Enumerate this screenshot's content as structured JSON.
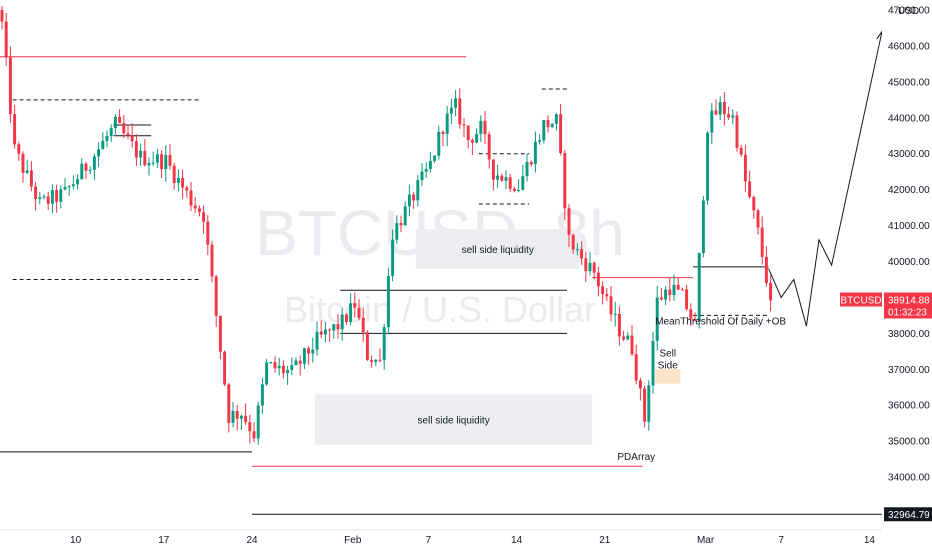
{
  "chart_data": {
    "type": "candlestick",
    "symbol": "BTCUSD",
    "watermark": {
      "symbol_line": "BTCUSD, 8h",
      "name_line": "Bitcoin / U.S. Dollar"
    },
    "currency": "USD",
    "last_price_label": "38914.88",
    "countdown": "01:32:23",
    "symbol_tag": "BTCUSD",
    "y_range": [
      33000,
      47000
    ],
    "y_ticks": [
      34000,
      35000,
      36000,
      37000,
      38000,
      39000,
      40000,
      41000,
      42000,
      43000,
      44000,
      45000,
      46000,
      47000
    ],
    "y_tick_labels": [
      "34000.00",
      "35000.00",
      "36000.00",
      "37000.00",
      "38000.00",
      "39000.00",
      "40000.00",
      "41000.00",
      "42000.00",
      "43000.00",
      "44000.00",
      "45000.00",
      "46000.00",
      "47000.00"
    ],
    "x_range": [
      "2022-01-04",
      "2022-03-15"
    ],
    "x_ticks": [
      {
        "date": "2022-01-10",
        "label": "10"
      },
      {
        "date": "2022-01-17",
        "label": "17"
      },
      {
        "date": "2022-01-24",
        "label": "24"
      },
      {
        "date": "2022-02-01",
        "label": "Feb"
      },
      {
        "date": "2022-02-07",
        "label": "7"
      },
      {
        "date": "2022-02-14",
        "label": "14"
      },
      {
        "date": "2022-02-21",
        "label": "21"
      },
      {
        "date": "2022-03-01",
        "label": "Mar"
      },
      {
        "date": "2022-03-07",
        "label": "7"
      },
      {
        "date": "2022-03-14",
        "label": "14"
      }
    ],
    "price_tag": {
      "value": 32964.79,
      "label": "32964.79"
    },
    "anchors": [
      {
        "date": "2022-01-04",
        "price": 46600
      },
      {
        "date": "2022-01-05",
        "price": 43100
      },
      {
        "date": "2022-01-07",
        "price": 41600
      },
      {
        "date": "2022-01-09",
        "price": 41900
      },
      {
        "date": "2022-01-11",
        "price": 42800
      },
      {
        "date": "2022-01-13",
        "price": 43800
      },
      {
        "date": "2022-01-15",
        "price": 42900
      },
      {
        "date": "2022-01-17",
        "price": 42800
      },
      {
        "date": "2022-01-19",
        "price": 41700
      },
      {
        "date": "2022-01-20",
        "price": 41300
      },
      {
        "date": "2022-01-21",
        "price": 38500
      },
      {
        "date": "2022-01-22",
        "price": 35700
      },
      {
        "date": "2022-01-23",
        "price": 35800
      },
      {
        "date": "2022-01-24",
        "price": 35200
      },
      {
        "date": "2022-01-25",
        "price": 37100
      },
      {
        "date": "2022-01-26",
        "price": 37000
      },
      {
        "date": "2022-01-27",
        "price": 36900
      },
      {
        "date": "2022-01-29",
        "price": 37800
      },
      {
        "date": "2022-01-31",
        "price": 38300
      },
      {
        "date": "2022-02-01",
        "price": 38800
      },
      {
        "date": "2022-02-02",
        "price": 37400
      },
      {
        "date": "2022-02-03",
        "price": 37200
      },
      {
        "date": "2022-02-04",
        "price": 40800
      },
      {
        "date": "2022-02-05",
        "price": 41400
      },
      {
        "date": "2022-02-07",
        "price": 42700
      },
      {
        "date": "2022-02-08",
        "price": 43800
      },
      {
        "date": "2022-02-09",
        "price": 44300
      },
      {
        "date": "2022-02-10",
        "price": 43400
      },
      {
        "date": "2022-02-11",
        "price": 43700
      },
      {
        "date": "2022-02-12",
        "price": 42500
      },
      {
        "date": "2022-02-14",
        "price": 42100
      },
      {
        "date": "2022-02-16",
        "price": 43800
      },
      {
        "date": "2022-02-17",
        "price": 43900
      },
      {
        "date": "2022-02-18",
        "price": 40600
      },
      {
        "date": "2022-02-19",
        "price": 40100
      },
      {
        "date": "2022-02-20",
        "price": 39700
      },
      {
        "date": "2022-02-21",
        "price": 38800
      },
      {
        "date": "2022-02-22",
        "price": 38100
      },
      {
        "date": "2022-02-23",
        "price": 37600
      },
      {
        "date": "2022-02-24",
        "price": 35600
      },
      {
        "date": "2022-02-25",
        "price": 38900
      },
      {
        "date": "2022-02-26",
        "price": 39300
      },
      {
        "date": "2022-02-27",
        "price": 39000
      },
      {
        "date": "2022-02-28",
        "price": 38200
      },
      {
        "date": "2022-03-01",
        "price": 43800
      },
      {
        "date": "2022-03-02",
        "price": 44300
      },
      {
        "date": "2022-03-03",
        "price": 44000
      },
      {
        "date": "2022-03-04",
        "price": 42200
      },
      {
        "date": "2022-03-05",
        "price": 40800
      },
      {
        "date": "2022-03-06",
        "price": 38914.88
      }
    ],
    "projection": [
      {
        "date": "2022-03-06",
        "price": 39800
      },
      {
        "date": "2022-03-07",
        "price": 39000
      },
      {
        "date": "2022-03-08",
        "price": 39500
      },
      {
        "date": "2022-03-09",
        "price": 38200
      },
      {
        "date": "2022-03-10",
        "price": 40600
      },
      {
        "date": "2022-03-11",
        "price": 39900
      },
      {
        "date": "2022-03-15",
        "price": 46400
      }
    ],
    "levels": [
      {
        "type": "hline",
        "color": "#f23645",
        "style": "solid",
        "price": 45700,
        "from": "2022-01-04",
        "to": "2022-02-10"
      },
      {
        "type": "hline",
        "color": "#131722",
        "style": "dashed",
        "price": 44500,
        "from": "2022-01-05",
        "to": "2022-01-20"
      },
      {
        "type": "hline",
        "color": "#131722",
        "style": "dashed",
        "price": 39500,
        "from": "2022-01-05",
        "to": "2022-01-20"
      },
      {
        "type": "hline",
        "color": "#131722",
        "style": "solid",
        "price": 43800,
        "from": "2022-01-13",
        "to": "2022-01-16"
      },
      {
        "type": "hline",
        "color": "#131722",
        "style": "solid",
        "price": 43500,
        "from": "2022-01-13",
        "to": "2022-01-16"
      },
      {
        "type": "hline",
        "color": "#131722",
        "style": "solid",
        "price": 34700,
        "from": "2022-01-04",
        "to": "2022-01-24"
      },
      {
        "type": "hline",
        "color": "#f23645",
        "style": "solid",
        "price": 34300,
        "from": "2022-01-24",
        "to": "2022-02-24"
      },
      {
        "type": "hline",
        "color": "#131722",
        "style": "solid",
        "price": 39200,
        "from": "2022-01-31",
        "to": "2022-02-18"
      },
      {
        "type": "hline",
        "color": "#131722",
        "style": "solid",
        "price": 38000,
        "from": "2022-01-31",
        "to": "2022-02-18"
      },
      {
        "type": "hline",
        "color": "#131722",
        "style": "dashed",
        "price": 43000,
        "from": "2022-02-11",
        "to": "2022-02-15"
      },
      {
        "type": "hline",
        "color": "#131722",
        "style": "dashed",
        "price": 41600,
        "from": "2022-02-11",
        "to": "2022-02-15"
      },
      {
        "type": "hline",
        "color": "#131722",
        "style": "dashed",
        "price": 44800,
        "from": "2022-02-16",
        "to": "2022-02-18"
      },
      {
        "type": "hline",
        "color": "#f23645",
        "style": "solid",
        "price": 39550,
        "from": "2022-02-20",
        "to": "2022-02-28"
      },
      {
        "type": "hline",
        "color": "#131722",
        "style": "solid",
        "price": 39850,
        "from": "2022-02-28",
        "to": "2022-03-06"
      },
      {
        "type": "hline",
        "color": "#131722",
        "style": "dashed",
        "price": 38500,
        "from": "2022-02-28",
        "to": "2022-03-06"
      },
      {
        "type": "hline",
        "color": "#131722",
        "style": "solid",
        "price": 32964.79,
        "from": "2022-01-24",
        "to": "2022-03-15"
      }
    ],
    "zones": [
      {
        "text": "sell side liquidity",
        "color": "#eceef1",
        "from": "2022-02-06",
        "to": "2022-02-19",
        "top": 40900,
        "bottom": 39800
      },
      {
        "text": "sell side liquidity",
        "color": "#eceef1",
        "from": "2022-01-29",
        "to": "2022-02-20",
        "top": 36300,
        "bottom": 34900
      }
    ],
    "annotations": [
      {
        "text": "MeanThreshold Of Daily +OB",
        "date": "2022-02-25",
        "price": 38250
      },
      {
        "text": "PDArray",
        "date": "2022-02-22",
        "price": 34470
      },
      {
        "text_lines": [
          "Sell",
          "Side"
        ],
        "date": "2022-02-26",
        "price": 37350
      }
    ],
    "sell_side_box": {
      "color": "#fde4c8",
      "from": "2022-02-25",
      "to": "2022-02-27",
      "top": 37000,
      "bottom": 36600
    },
    "colors": {
      "up": "#089981",
      "down": "#f23645",
      "level_red": "#f23645",
      "text": "#131722"
    }
  }
}
